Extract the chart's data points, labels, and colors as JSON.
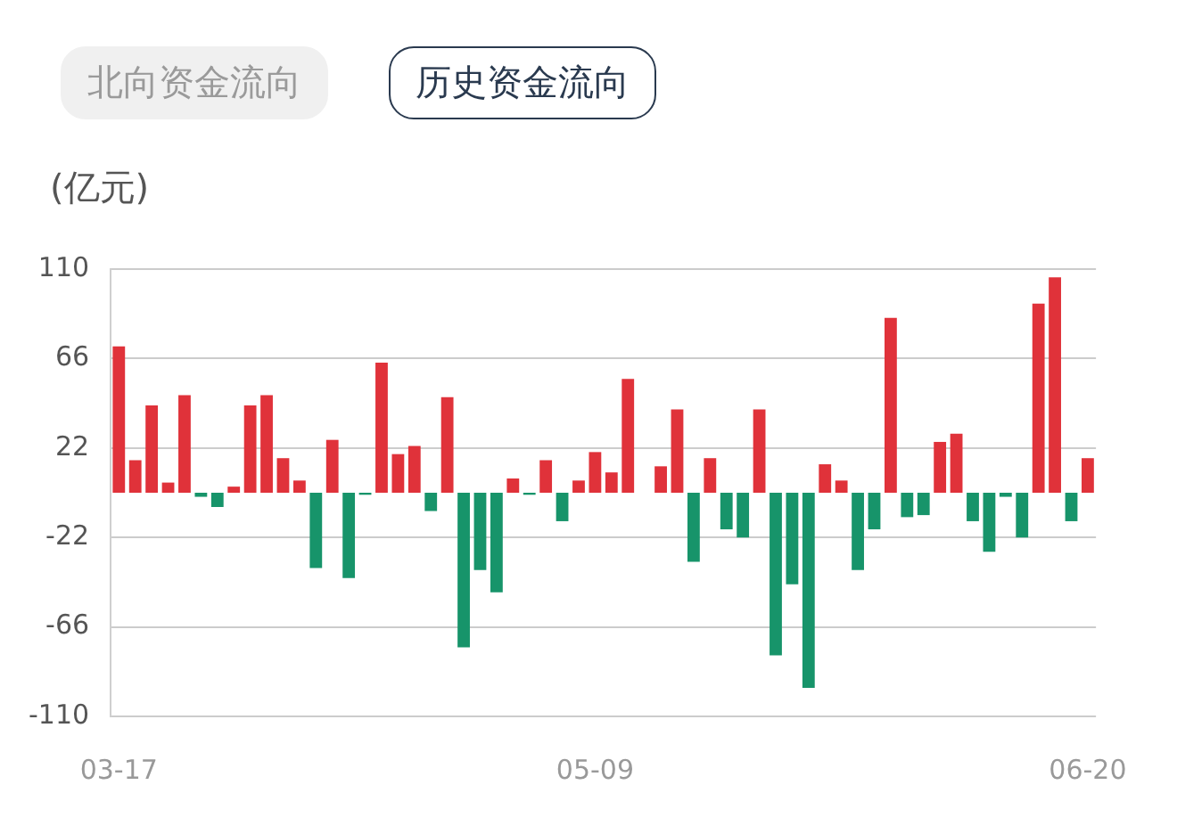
{
  "chart_data": {
    "type": "bar",
    "title": "历史资金流向",
    "subtitle": "北向资金流向",
    "ylabel": "(亿元)",
    "categories": [
      "03-17",
      null,
      null,
      null,
      null,
      null,
      null,
      null,
      null,
      null,
      null,
      null,
      null,
      null,
      null,
      null,
      null,
      null,
      null,
      null,
      null,
      null,
      null,
      null,
      null,
      null,
      null,
      null,
      null,
      "05-09",
      null,
      null,
      null,
      null,
      null,
      null,
      null,
      null,
      null,
      null,
      null,
      null,
      null,
      null,
      null,
      null,
      null,
      null,
      null,
      null,
      null,
      null,
      null,
      null,
      null,
      null,
      null,
      null,
      null,
      "06-20"
    ],
    "values": [
      72,
      16,
      43,
      5,
      48,
      -2,
      -7,
      3,
      43,
      48,
      17,
      6,
      -37,
      26,
      -42,
      -1,
      64,
      19,
      23,
      -9,
      47,
      -76,
      -38,
      -49,
      7,
      -1,
      16,
      -14,
      6,
      20,
      10,
      56,
      0,
      13,
      41,
      -34,
      17,
      -18,
      -22,
      41,
      -80,
      -45,
      -96,
      14,
      6,
      -38,
      -18,
      86,
      -12,
      -11,
      25,
      29,
      -14,
      -29,
      -2,
      -22,
      93,
      106,
      -14,
      17
    ],
    "colors": [
      "#e0323a",
      "#e0323a",
      "#e0323a",
      "#e0323a",
      "#e0323a",
      "#17946a",
      "#17946a",
      "#e0323a",
      "#e0323a",
      "#e0323a",
      "#e0323a",
      "#e0323a",
      "#17946a",
      "#e0323a",
      "#17946a",
      "#17946a",
      "#e0323a",
      "#e0323a",
      "#e0323a",
      "#17946a",
      "#e0323a",
      "#17946a",
      "#17946a",
      "#17946a",
      "#e0323a",
      "#17946a",
      "#e0323a",
      "#17946a",
      "#e0323a",
      "#e0323a",
      "#e0323a",
      "#e0323a",
      "#e0323a",
      "#e0323a",
      "#e0323a",
      "#17946a",
      "#e0323a",
      "#17946a",
      "#17946a",
      "#e0323a",
      "#17946a",
      "#17946a",
      "#17946a",
      "#e0323a",
      "#e0323a",
      "#17946a",
      "#17946a",
      "#e0323a",
      "#17946a",
      "#17946a",
      "#e0323a",
      "#e0323a",
      "#17946a",
      "#17946a",
      "#17946a",
      "#17946a",
      "#e0323a",
      "#e0323a",
      "#17946a",
      "#e0323a"
    ],
    "ylim": [
      -110,
      110
    ],
    "yticks": [
      -110,
      -66,
      -22,
      22,
      66,
      110
    ],
    "grid": "y",
    "legend": false
  }
}
